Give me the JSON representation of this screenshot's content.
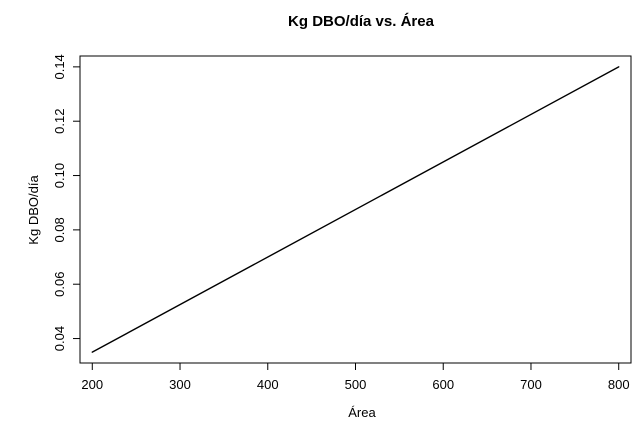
{
  "chart_data": {
    "type": "line",
    "title": "Kg DBO/día vs. Área",
    "xlabel": "Área",
    "ylabel": "Kg DBO/día",
    "xlim": [
      186,
      814
    ],
    "ylim": [
      0.031,
      0.144
    ],
    "x_ticks": [
      200,
      300,
      400,
      500,
      600,
      700,
      800
    ],
    "x_tick_labels": [
      "200",
      "300",
      "400",
      "500",
      "600",
      "700",
      "800"
    ],
    "y_ticks": [
      0.04,
      0.06,
      0.08,
      0.1,
      0.12,
      0.14
    ],
    "y_tick_labels": [
      "0.04",
      "0.06",
      "0.08",
      "0.10",
      "0.12",
      "0.14"
    ],
    "grid": false,
    "legend": "none",
    "series": [
      {
        "x": [
          200,
          800
        ],
        "y": [
          0.035,
          0.14
        ],
        "color": "#000000"
      }
    ]
  }
}
